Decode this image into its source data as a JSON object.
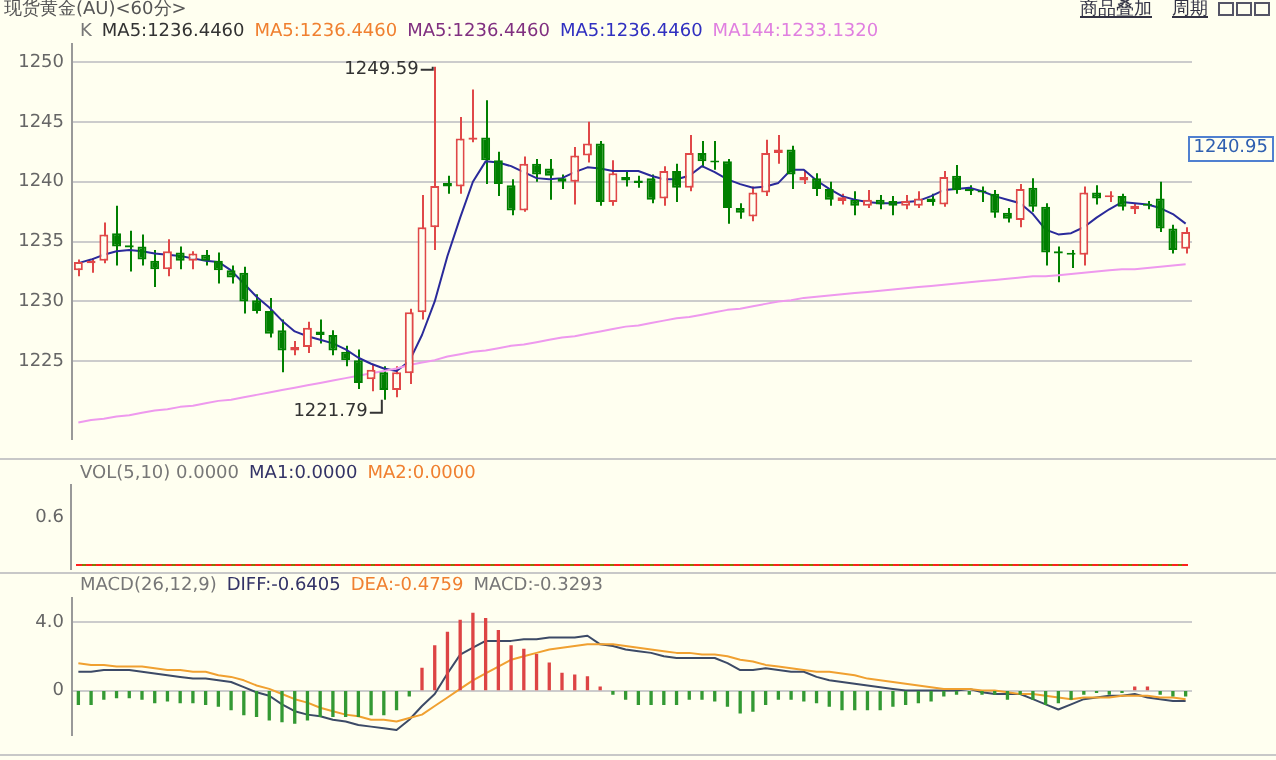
{
  "chart_data": [
    {
      "type": "candlestick",
      "title": "现货黄金(AU)<60分>",
      "tick_labels": "y",
      "grid": "y",
      "categories": [
        null,
        null,
        null,
        null,
        null,
        null,
        null,
        null,
        null,
        null,
        null,
        null,
        null,
        null,
        null,
        null,
        null,
        null,
        null,
        null,
        null,
        null,
        null,
        null,
        null,
        null,
        null,
        null,
        null,
        null,
        null,
        null,
        null,
        null,
        null,
        null,
        null,
        null,
        null,
        null,
        null,
        null,
        null,
        null,
        null,
        null,
        null,
        null,
        null,
        null,
        null,
        null,
        null,
        null,
        null,
        null,
        null,
        null,
        null,
        null,
        null,
        null,
        null,
        null,
        null,
        null,
        null,
        null,
        null,
        null,
        null,
        null,
        null,
        null,
        null,
        null,
        null,
        null,
        null,
        null,
        null,
        null,
        null,
        null,
        null,
        null,
        null,
        null
      ],
      "ohlc": [
        [
          1232.6,
          1233.5,
          1232.1,
          1233.3
        ],
        [
          1233.2,
          1233.6,
          1232.4,
          1233.4
        ],
        [
          1233.4,
          1236.6,
          1233.2,
          1235.6
        ],
        [
          1235.7,
          1238.0,
          1233.0,
          1234.6
        ],
        [
          1234.7,
          1235.9,
          1232.5,
          1234.5
        ],
        [
          1234.6,
          1235.6,
          1233.0,
          1233.5
        ],
        [
          1233.4,
          1234.3,
          1231.2,
          1232.7
        ],
        [
          1232.7,
          1235.2,
          1232.1,
          1234.2
        ],
        [
          1234.1,
          1234.6,
          1232.7,
          1233.4
        ],
        [
          1233.4,
          1234.2,
          1232.7,
          1234.0
        ],
        [
          1233.9,
          1234.3,
          1233.0,
          1233.4
        ],
        [
          1233.4,
          1234.1,
          1231.5,
          1232.6
        ],
        [
          1232.6,
          1233.0,
          1231.5,
          1232.0
        ],
        [
          1232.4,
          1232.9,
          1229.0,
          1230.0
        ],
        [
          1230.1,
          1230.6,
          1229.0,
          1229.2
        ],
        [
          1229.2,
          1230.3,
          1227.0,
          1227.3
        ],
        [
          1227.6,
          1228.5,
          1224.1,
          1225.9
        ],
        [
          1225.9,
          1226.7,
          1225.5,
          1226.2
        ],
        [
          1226.2,
          1228.3,
          1225.7,
          1227.8
        ],
        [
          1227.5,
          1228.5,
          1226.5,
          1227.2
        ],
        [
          1227.2,
          1227.6,
          1225.5,
          1225.9
        ],
        [
          1225.8,
          1226.3,
          1224.6,
          1225.1
        ],
        [
          1225.1,
          1226.0,
          1222.7,
          1223.2
        ],
        [
          1223.5,
          1224.7,
          1222.5,
          1224.3
        ],
        [
          1224.1,
          1224.6,
          1221.79,
          1222.6
        ],
        [
          1222.6,
          1224.6,
          1222.0,
          1224.1
        ],
        [
          1224.0,
          1229.4,
          1223.1,
          1229.1
        ],
        [
          1229.1,
          1238.9,
          1228.5,
          1236.2
        ],
        [
          1236.2,
          1249.59,
          1234.3,
          1239.65
        ],
        [
          1239.9,
          1240.5,
          1239.0,
          1239.6
        ],
        [
          1239.6,
          1245.4,
          1239.0,
          1243.6
        ],
        [
          1243.5,
          1247.7,
          1243.3,
          1243.7
        ],
        [
          1243.7,
          1246.8,
          1239.8,
          1241.8
        ],
        [
          1241.8,
          1242.5,
          1238.8,
          1239.8
        ],
        [
          1239.7,
          1240.2,
          1237.2,
          1237.6
        ],
        [
          1237.6,
          1242.1,
          1237.5,
          1241.5
        ],
        [
          1241.5,
          1241.9,
          1240.0,
          1240.6
        ],
        [
          1241.1,
          1241.9,
          1238.5,
          1240.5
        ],
        [
          1240.3,
          1240.6,
          1239.4,
          1240.0
        ],
        [
          1240.0,
          1242.9,
          1238.1,
          1242.2
        ],
        [
          1242.2,
          1245.0,
          1241.6,
          1243.2
        ],
        [
          1243.2,
          1243.4,
          1238.0,
          1238.3
        ],
        [
          1238.3,
          1241.8,
          1238.0,
          1240.7
        ],
        [
          1240.4,
          1240.9,
          1239.6,
          1240.1
        ],
        [
          1240.1,
          1240.5,
          1239.5,
          1239.9
        ],
        [
          1240.3,
          1240.6,
          1238.2,
          1238.5
        ],
        [
          1238.6,
          1241.3,
          1238.0,
          1240.9
        ],
        [
          1240.9,
          1241.5,
          1238.3,
          1239.5
        ],
        [
          1239.5,
          1243.9,
          1239.2,
          1242.4
        ],
        [
          1242.4,
          1243.4,
          1241.2,
          1241.7
        ],
        [
          1241.7,
          1243.4,
          1241.0,
          1241.6
        ],
        [
          1241.7,
          1241.9,
          1236.5,
          1237.8
        ],
        [
          1237.8,
          1238.2,
          1236.9,
          1237.4
        ],
        [
          1237.1,
          1239.6,
          1236.7,
          1239.1
        ],
        [
          1239.1,
          1243.5,
          1238.8,
          1242.4
        ],
        [
          1242.4,
          1243.9,
          1241.5,
          1242.7
        ],
        [
          1242.7,
          1243.0,
          1239.4,
          1240.6
        ],
        [
          1240.1,
          1240.9,
          1239.8,
          1240.4
        ],
        [
          1240.3,
          1240.7,
          1238.8,
          1239.4
        ],
        [
          1239.4,
          1240.0,
          1238.0,
          1238.5
        ],
        [
          1238.4,
          1239.0,
          1238.1,
          1238.7
        ],
        [
          1238.5,
          1239.2,
          1237.2,
          1238.0
        ],
        [
          1238.0,
          1239.3,
          1237.8,
          1238.5
        ],
        [
          1238.5,
          1238.9,
          1237.7,
          1238.1
        ],
        [
          1238.4,
          1238.8,
          1237.2,
          1238.0
        ],
        [
          1238.0,
          1238.9,
          1237.7,
          1238.4
        ],
        [
          1238.0,
          1239.2,
          1237.8,
          1238.6
        ],
        [
          1238.6,
          1239.0,
          1238.0,
          1238.3
        ],
        [
          1238.1,
          1240.9,
          1237.9,
          1240.4
        ],
        [
          1240.5,
          1241.4,
          1239.0,
          1239.3
        ],
        [
          1239.4,
          1239.7,
          1238.9,
          1239.2
        ],
        [
          1239.2,
          1239.6,
          1238.3,
          1239.1
        ],
        [
          1239.0,
          1239.3,
          1237.0,
          1237.4
        ],
        [
          1237.4,
          1237.8,
          1236.6,
          1236.9
        ],
        [
          1236.8,
          1239.8,
          1236.2,
          1239.4
        ],
        [
          1239.5,
          1240.3,
          1237.5,
          1237.9
        ],
        [
          1237.9,
          1238.2,
          1233.0,
          1234.1
        ],
        [
          1234.2,
          1234.6,
          1231.6,
          1234.0
        ],
        [
          1234.0,
          1234.3,
          1232.8,
          1233.9
        ],
        [
          1233.9,
          1239.6,
          1233.0,
          1239.1
        ],
        [
          1239.1,
          1239.7,
          1238.1,
          1238.6
        ],
        [
          1238.7,
          1239.2,
          1238.3,
          1238.8
        ],
        [
          1238.8,
          1239.0,
          1237.6,
          1237.9
        ],
        [
          1237.7,
          1238.2,
          1237.3,
          1238.0
        ],
        [
          1238.1,
          1238.4,
          1237.7,
          1238.0
        ],
        [
          1238.6,
          1240.0,
          1235.8,
          1236.1
        ],
        [
          1236.1,
          1236.4,
          1234.0,
          1234.3
        ],
        [
          1234.4,
          1236.2,
          1234.0,
          1235.8
        ]
      ],
      "series": [
        {
          "type": "line",
          "color": "#2a2a9a",
          "values": [
            1233.2,
            1233.5,
            1233.9,
            1234.2,
            1234.3,
            1234.2,
            1234.0,
            1233.9,
            1233.8,
            1233.6,
            1233.4,
            1233.3,
            1232.6,
            1231.5,
            1230.4,
            1229.5,
            1228.4,
            1227.5,
            1227.1,
            1226.8,
            1226.5,
            1226.0,
            1225.3,
            1224.8,
            1224.4,
            1224.2,
            1225.0,
            1227.2,
            1230.0,
            1233.8,
            1237.0,
            1240.0,
            1241.7,
            1241.6,
            1241.3,
            1240.8,
            1240.3,
            1240.2,
            1240.3,
            1240.8,
            1241.2,
            1241.1,
            1240.9,
            1240.9,
            1240.9,
            1240.5,
            1240.2,
            1240.2,
            1240.5,
            1241.3,
            1240.8,
            1240.2,
            1239.8,
            1239.5,
            1239.6,
            1239.9,
            1241.0,
            1241.0,
            1240.1,
            1239.4,
            1238.8,
            1238.5,
            1238.3,
            1238.2,
            1238.2,
            1238.3,
            1238.4,
            1238.8,
            1239.3,
            1239.4,
            1239.5,
            1239.2,
            1238.8,
            1238.5,
            1238.2,
            1237.3,
            1236.0,
            1235.6,
            1235.7,
            1236.2,
            1237.0,
            1237.7,
            1238.3,
            1238.2,
            1238.1,
            1237.8,
            1237.3,
            1236.5
          ]
        },
        {
          "type": "line",
          "color": "#ee99ee",
          "values": [
            1219.9,
            1220.1,
            1220.2,
            1220.4,
            1220.5,
            1220.7,
            1220.9,
            1221.0,
            1221.2,
            1221.3,
            1221.5,
            1221.7,
            1221.8,
            1222.0,
            1222.2,
            1222.4,
            1222.6,
            1222.8,
            1223.0,
            1223.2,
            1223.4,
            1223.6,
            1223.8,
            1224.0,
            1224.2,
            1224.4,
            1224.7,
            1224.9,
            1225.1,
            1225.4,
            1225.6,
            1225.8,
            1225.9,
            1226.1,
            1226.3,
            1226.4,
            1226.6,
            1226.8,
            1227.0,
            1227.1,
            1227.3,
            1227.5,
            1227.7,
            1227.9,
            1228.0,
            1228.2,
            1228.4,
            1228.6,
            1228.7,
            1228.9,
            1229.1,
            1229.3,
            1229.4,
            1229.6,
            1229.8,
            1230.0,
            1230.1,
            1230.3,
            1230.4,
            1230.5,
            1230.6,
            1230.7,
            1230.8,
            1230.9,
            1231.0,
            1231.1,
            1231.2,
            1231.3,
            1231.4,
            1231.5,
            1231.6,
            1231.7,
            1231.8,
            1231.9,
            1232.0,
            1232.1,
            1232.1,
            1232.2,
            1232.3,
            1232.4,
            1232.5,
            1232.6,
            1232.7,
            1232.7,
            1232.8,
            1232.9,
            1233.0,
            1233.1
          ]
        }
      ],
      "ylim": [
        1218.5,
        1251.5
      ],
      "yticks": [
        1225,
        1230,
        1235,
        1240,
        1245,
        1250
      ],
      "annotations": [
        "K",
        "MA5:1236.4460",
        "MA5:1236.4460",
        "MA5:1236.4460",
        "MA5:1236.4460",
        "MA144:1233.1320",
        "商品叠加",
        "周期",
        "1249.59",
        "1221.79",
        "1240.95"
      ]
    },
    {
      "type": "other",
      "annotations": [
        "VOL(5,10) 0.0000",
        "MA1:0.0000",
        "MA2:0.0000",
        "0.6"
      ]
    },
    {
      "type": "bar",
      "tick_labels": "y",
      "grid": "y",
      "categories": [
        null,
        null,
        null,
        null,
        null,
        null,
        null,
        null,
        null,
        null,
        null,
        null,
        null,
        null,
        null,
        null,
        null,
        null,
        null,
        null,
        null,
        null,
        null,
        null,
        null,
        null,
        null,
        null,
        null,
        null,
        null,
        null,
        null,
        null,
        null,
        null,
        null,
        null,
        null,
        null,
        null,
        null,
        null,
        null,
        null,
        null,
        null,
        null,
        null,
        null,
        null,
        null,
        null,
        null,
        null,
        null,
        null,
        null,
        null,
        null,
        null,
        null,
        null,
        null,
        null,
        null,
        null,
        null,
        null,
        null,
        null,
        null,
        null,
        null,
        null,
        null,
        null,
        null,
        null,
        null,
        null,
        null,
        null,
        null,
        null,
        null,
        null,
        null
      ],
      "series": [
        {
          "type": "bar",
          "values": [
            -0.8,
            -0.8,
            -0.5,
            -0.4,
            -0.4,
            -0.5,
            -0.7,
            -0.6,
            -0.7,
            -0.7,
            -0.8,
            -0.9,
            -1.1,
            -1.4,
            -1.5,
            -1.7,
            -1.8,
            -1.9,
            -1.7,
            -1.5,
            -1.5,
            -1.5,
            -1.5,
            -1.4,
            -1.4,
            -1.1,
            -0.3,
            1.3,
            2.6,
            3.4,
            4.1,
            4.5,
            4.2,
            3.5,
            2.6,
            2.4,
            2.1,
            1.6,
            1.0,
            0.9,
            0.8,
            0.2,
            -0.2,
            -0.5,
            -0.8,
            -0.8,
            -0.8,
            -0.8,
            -0.5,
            -0.5,
            -0.6,
            -0.9,
            -1.3,
            -1.2,
            -0.8,
            -0.5,
            -0.5,
            -0.6,
            -0.7,
            -0.9,
            -1.1,
            -1.1,
            -1.1,
            -1.1,
            -0.9,
            -0.8,
            -0.7,
            -0.6,
            -0.3,
            -0.2,
            -0.2,
            -0.2,
            -0.2,
            -0.5,
            -0.2,
            -0.5,
            -0.8,
            -0.7,
            -0.5,
            -0.2,
            -0.1,
            -0.2,
            -0.1,
            0.2,
            0.2,
            -0.2,
            -0.3,
            -0.3
          ],
          "colors": [
            "#339933",
            "#339933",
            "#339933",
            "#339933",
            "#339933",
            "#339933",
            "#339933",
            "#339933",
            "#339933",
            "#339933",
            "#339933",
            "#339933",
            "#339933",
            "#339933",
            "#339933",
            "#339933",
            "#339933",
            "#339933",
            "#339933",
            "#339933",
            "#339933",
            "#339933",
            "#339933",
            "#339933",
            "#339933",
            "#339933",
            "#339933",
            "#dd4444",
            "#dd4444",
            "#dd4444",
            "#dd4444",
            "#dd4444",
            "#dd4444",
            "#dd4444",
            "#dd4444",
            "#dd4444",
            "#dd4444",
            "#dd4444",
            "#dd4444",
            "#dd4444",
            "#dd4444",
            "#dd4444",
            "#339933",
            "#339933",
            "#339933",
            "#339933",
            "#339933",
            "#339933",
            "#339933",
            "#339933",
            "#339933",
            "#339933",
            "#339933",
            "#339933",
            "#339933",
            "#339933",
            "#339933",
            "#339933",
            "#339933",
            "#339933",
            "#339933",
            "#339933",
            "#339933",
            "#339933",
            "#339933",
            "#339933",
            "#339933",
            "#339933",
            "#339933",
            "#339933",
            "#339933",
            "#339933",
            "#339933",
            "#339933",
            "#339933",
            "#339933",
            "#339933",
            "#339933",
            "#339933",
            "#339933",
            "#339933",
            "#339933",
            "#339933",
            "#dd4444",
            "#dd4444",
            "#339933",
            "#339933",
            "#339933"
          ]
        },
        {
          "type": "line",
          "color": "#3c4a66",
          "values": [
            1.1,
            1.1,
            1.2,
            1.2,
            1.2,
            1.1,
            1.0,
            0.9,
            0.8,
            0.7,
            0.7,
            0.6,
            0.5,
            0.2,
            -0.1,
            -0.3,
            -0.8,
            -1.2,
            -1.4,
            -1.5,
            -1.7,
            -1.8,
            -2.0,
            -2.1,
            -2.2,
            -2.3,
            -1.7,
            -0.9,
            -0.2,
            1.0,
            2.1,
            2.5,
            2.9,
            2.9,
            2.9,
            3.0,
            3.0,
            3.1,
            3.1,
            3.1,
            3.2,
            2.7,
            2.6,
            2.4,
            2.3,
            2.2,
            2.0,
            1.9,
            1.9,
            1.9,
            1.9,
            1.6,
            1.2,
            1.2,
            1.3,
            1.2,
            1.1,
            1.1,
            0.8,
            0.6,
            0.5,
            0.4,
            0.3,
            0.2,
            0.1,
            0,
            0,
            0,
            0,
            0,
            0.1,
            -0.1,
            -0.2,
            -0.2,
            -0.2,
            -0.5,
            -0.8,
            -1.1,
            -0.8,
            -0.5,
            -0.4,
            -0.3,
            -0.3,
            -0.2,
            -0.4,
            -0.5,
            -0.6,
            -0.6
          ]
        },
        {
          "type": "line",
          "color": "#f0a030",
          "values": [
            1.6,
            1.5,
            1.5,
            1.4,
            1.4,
            1.4,
            1.3,
            1.2,
            1.2,
            1.1,
            1.1,
            0.9,
            0.8,
            0.6,
            0.3,
            0.1,
            -0.2,
            -0.5,
            -0.7,
            -1.0,
            -1.2,
            -1.4,
            -1.5,
            -1.7,
            -1.7,
            -1.8,
            -1.6,
            -1.4,
            -0.9,
            -0.4,
            0.1,
            0.6,
            1.0,
            1.4,
            1.8,
            2.0,
            2.2,
            2.4,
            2.5,
            2.6,
            2.7,
            2.7,
            2.7,
            2.6,
            2.5,
            2.4,
            2.3,
            2.2,
            2.2,
            2.1,
            2.1,
            2.0,
            1.8,
            1.7,
            1.5,
            1.4,
            1.3,
            1.2,
            1.1,
            1.1,
            1.0,
            0.9,
            0.7,
            0.6,
            0.5,
            0.4,
            0.3,
            0.2,
            0.1,
            0.1,
            0.1,
            0,
            0,
            -0.1,
            -0.2,
            -0.2,
            -0.3,
            -0.4,
            -0.5,
            -0.4,
            -0.4,
            -0.4,
            -0.3,
            -0.3,
            -0.3,
            -0.4,
            -0.4,
            -0.5
          ]
        }
      ],
      "ylim": [
        -2.6,
        5.4
      ],
      "yticks": [
        0,
        {
          "value": 4,
          "label": "4.0"
        }
      ],
      "annotations": [
        "MACD(26,12,9)",
        "DIFF:-0.6405",
        "DEA:-0.4759",
        "MACD:-0.3293"
      ]
    }
  ]
}
